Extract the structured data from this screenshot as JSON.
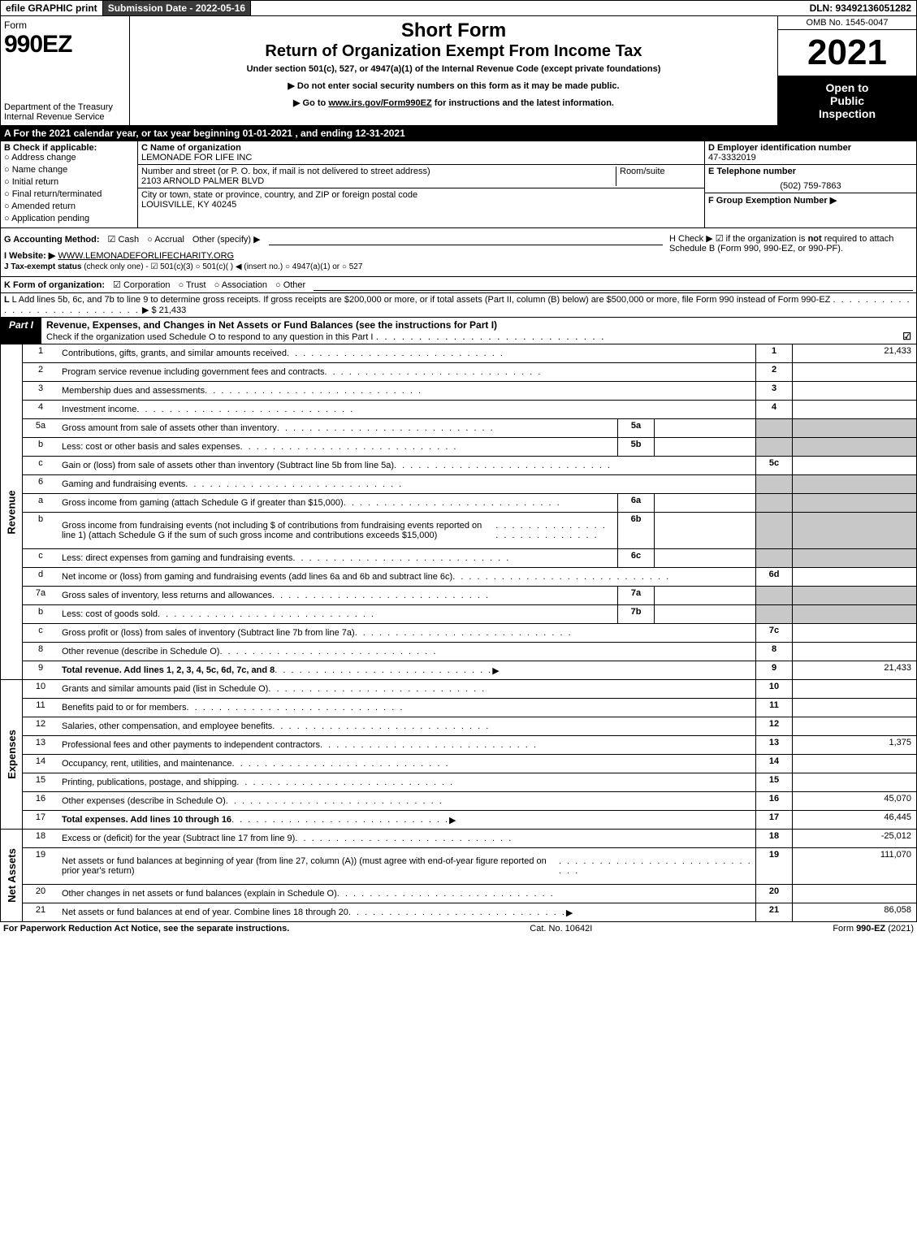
{
  "topbar": {
    "efile": "efile GRAPHIC print",
    "submission": "Submission Date - 2022-05-16",
    "dln": "DLN: 93492136051282"
  },
  "header": {
    "form_label": "Form",
    "form_number": "990EZ",
    "dept1": "Department of the Treasury",
    "dept2": "Internal Revenue Service",
    "title1": "Short Form",
    "title2": "Return of Organization Exempt From Income Tax",
    "sub": "Under section 501(c), 527, or 4947(a)(1) of the Internal Revenue Code (except private foundations)",
    "inst1": "Do not enter social security numbers on this form as it may be made public.",
    "inst2_pre": "Go to ",
    "inst2_link": "www.irs.gov/Form990EZ",
    "inst2_post": " for instructions and the latest information.",
    "omb": "OMB No. 1545-0047",
    "year": "2021",
    "open1": "Open to",
    "open2": "Public",
    "open3": "Inspection"
  },
  "section_a": "A  For the 2021 calendar year, or tax year beginning 01-01-2021 , and ending 12-31-2021",
  "col_b": {
    "title": "B  Check if applicable:",
    "items": [
      "Address change",
      "Name change",
      "Initial return",
      "Final return/terminated",
      "Amended return",
      "Application pending"
    ]
  },
  "col_c": {
    "name_lbl": "C Name of organization",
    "name": "LEMONADE FOR LIFE INC",
    "street_lbl": "Number and street (or P. O. box, if mail is not delivered to street address)",
    "room_lbl": "Room/suite",
    "street": "2103 ARNOLD PALMER BLVD",
    "city_lbl": "City or town, state or province, country, and ZIP or foreign postal code",
    "city": "LOUISVILLE, KY  40245"
  },
  "col_def": {
    "d_lbl": "D Employer identification number",
    "ein": "47-3332019",
    "e_lbl": "E Telephone number",
    "phone": "(502) 759-7863",
    "f_lbl": "F Group Exemption Number  ▶"
  },
  "line_g": {
    "label": "G Accounting Method:",
    "cash": "Cash",
    "accrual": "Accrual",
    "other": "Other (specify) ▶"
  },
  "line_h": {
    "text1": "H  Check ▶ ☑ if the organization is ",
    "not": "not",
    "text2": " required to attach Schedule B (Form 990, 990-EZ, or 990-PF)."
  },
  "line_i": {
    "label": "I Website: ▶",
    "url": "WWW.LEMONADEFORLIFECHARITY.ORG"
  },
  "line_j": {
    "label": "J Tax-exempt status ",
    "rest": "(check only one) - ☑ 501(c)(3) ○ 501(c)(  ) ◀ (insert no.) ○ 4947(a)(1) or ○ 527"
  },
  "line_k": {
    "label": "K Form of organization:",
    "corp": "Corporation",
    "trust": "Trust",
    "assoc": "Association",
    "other": "Other"
  },
  "line_l": {
    "text": "L Add lines 5b, 6c, and 7b to line 9 to determine gross receipts. If gross receipts are $200,000 or more, or if total assets (Part II, column (B) below) are $500,000 or more, file Form 990 instead of Form 990-EZ",
    "amount": "▶ $ 21,433"
  },
  "part1": {
    "label": "Part I",
    "title": "Revenue, Expenses, and Changes in Net Assets or Fund Balances (see the instructions for Part I)",
    "sub": "Check if the organization used Schedule O to respond to any question in this Part I"
  },
  "revenue": {
    "side": "Revenue",
    "rows": [
      {
        "n": "1",
        "desc": "Contributions, gifts, grants, and similar amounts received",
        "ln": "1",
        "val": "21,433"
      },
      {
        "n": "2",
        "desc": "Program service revenue including government fees and contracts",
        "ln": "2",
        "val": ""
      },
      {
        "n": "3",
        "desc": "Membership dues and assessments",
        "ln": "3",
        "val": ""
      },
      {
        "n": "4",
        "desc": "Investment income",
        "ln": "4",
        "val": ""
      },
      {
        "n": "5a",
        "desc": "Gross amount from sale of assets other than inventory",
        "sub": "5a",
        "grey": true
      },
      {
        "n": "b",
        "desc": "Less: cost or other basis and sales expenses",
        "sub": "5b",
        "grey": true
      },
      {
        "n": "c",
        "desc": "Gain or (loss) from sale of assets other than inventory (Subtract line 5b from line 5a)",
        "ln": "5c",
        "val": ""
      },
      {
        "n": "6",
        "desc": "Gaming and fundraising events",
        "greycell": true
      },
      {
        "n": "a",
        "desc": "Gross income from gaming (attach Schedule G if greater than $15,000)",
        "sub": "6a",
        "grey": true
      },
      {
        "n": "b",
        "desc": "Gross income from fundraising events (not including $                     of contributions from fundraising events reported on line 1) (attach Schedule G if the sum of such gross income and contributions exceeds $15,000)",
        "sub": "6b",
        "grey": true,
        "tall": true
      },
      {
        "n": "c",
        "desc": "Less: direct expenses from gaming and fundraising events",
        "sub": "6c",
        "grey": true
      },
      {
        "n": "d",
        "desc": "Net income or (loss) from gaming and fundraising events (add lines 6a and 6b and subtract line 6c)",
        "ln": "6d",
        "val": ""
      },
      {
        "n": "7a",
        "desc": "Gross sales of inventory, less returns and allowances",
        "sub": "7a",
        "grey": true
      },
      {
        "n": "b",
        "desc": "Less: cost of goods sold",
        "sub": "7b",
        "grey": true
      },
      {
        "n": "c",
        "desc": "Gross profit or (loss) from sales of inventory (Subtract line 7b from line 7a)",
        "ln": "7c",
        "val": ""
      },
      {
        "n": "8",
        "desc": "Other revenue (describe in Schedule O)",
        "ln": "8",
        "val": ""
      },
      {
        "n": "9",
        "desc": "Total revenue. Add lines 1, 2, 3, 4, 5c, 6d, 7c, and 8",
        "ln": "9",
        "val": "21,433",
        "bold": true,
        "arrow": true
      }
    ]
  },
  "expenses": {
    "side": "Expenses",
    "rows": [
      {
        "n": "10",
        "desc": "Grants and similar amounts paid (list in Schedule O)",
        "ln": "10",
        "val": ""
      },
      {
        "n": "11",
        "desc": "Benefits paid to or for members",
        "ln": "11",
        "val": ""
      },
      {
        "n": "12",
        "desc": "Salaries, other compensation, and employee benefits",
        "ln": "12",
        "val": ""
      },
      {
        "n": "13",
        "desc": "Professional fees and other payments to independent contractors",
        "ln": "13",
        "val": "1,375"
      },
      {
        "n": "14",
        "desc": "Occupancy, rent, utilities, and maintenance",
        "ln": "14",
        "val": ""
      },
      {
        "n": "15",
        "desc": "Printing, publications, postage, and shipping",
        "ln": "15",
        "val": ""
      },
      {
        "n": "16",
        "desc": "Other expenses (describe in Schedule O)",
        "ln": "16",
        "val": "45,070"
      },
      {
        "n": "17",
        "desc": "Total expenses. Add lines 10 through 16",
        "ln": "17",
        "val": "46,445",
        "bold": true,
        "arrow": true
      }
    ]
  },
  "netassets": {
    "side": "Net Assets",
    "rows": [
      {
        "n": "18",
        "desc": "Excess or (deficit) for the year (Subtract line 17 from line 9)",
        "ln": "18",
        "val": "-25,012"
      },
      {
        "n": "19",
        "desc": "Net assets or fund balances at beginning of year (from line 27, column (A)) (must agree with end-of-year figure reported on prior year's return)",
        "ln": "19",
        "val": "111,070",
        "tall": true
      },
      {
        "n": "20",
        "desc": "Other changes in net assets or fund balances (explain in Schedule O)",
        "ln": "20",
        "val": ""
      },
      {
        "n": "21",
        "desc": "Net assets or fund balances at end of year. Combine lines 18 through 20",
        "ln": "21",
        "val": "86,058",
        "arrow": true
      }
    ]
  },
  "footer": {
    "left": "For Paperwork Reduction Act Notice, see the separate instructions.",
    "mid": "Cat. No. 10642I",
    "right_pre": "Form ",
    "right_bold": "990-EZ",
    "right_post": " (2021)"
  }
}
